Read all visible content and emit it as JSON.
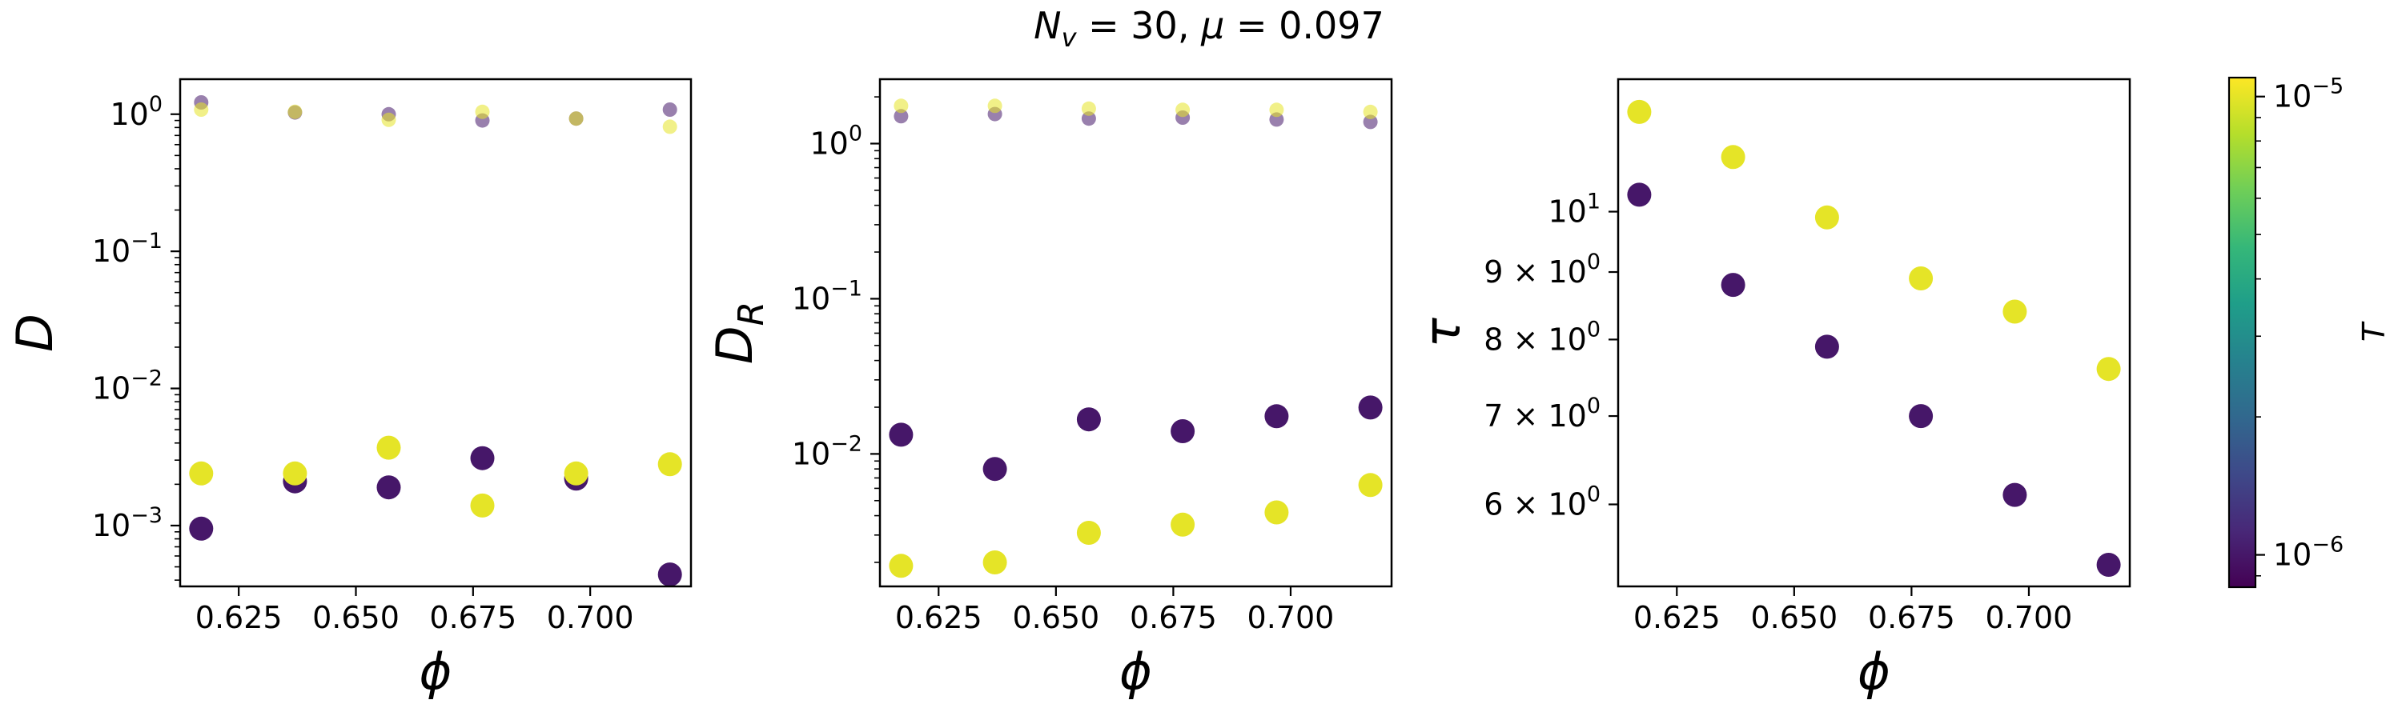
{
  "suptitle": "N_v = 30, μ = 0.097",
  "colorbar": {
    "label": "T",
    "scale": "log",
    "range": [
      8.5e-07,
      1.1e-05
    ],
    "ticks": [
      {
        "value": 1e-06,
        "exp": "−6"
      },
      {
        "value": 1e-05,
        "exp": "−5"
      }
    ],
    "colormap": "viridis",
    "colors": [
      "#440154",
      "#482878",
      "#3e4989",
      "#31688e",
      "#26828e",
      "#1f9e89",
      "#35b779",
      "#6ece58",
      "#b5de2b",
      "#fde725"
    ]
  },
  "chart_data": [
    {
      "type": "scatter",
      "xlabel": "ϕ",
      "ylabel": "D",
      "yscale": "log",
      "xlim": [
        0.6125,
        0.7215
      ],
      "ylim": [
        0.00036,
        1.8
      ],
      "xticks": [
        "0.625",
        "0.650",
        "0.675",
        "0.700"
      ],
      "yticks": [
        {
          "value": 1,
          "exp": "0"
        },
        {
          "value": 0.1,
          "exp": "−1"
        },
        {
          "value": 0.01,
          "exp": "−2"
        },
        {
          "value": 0.001,
          "exp": "−3"
        }
      ],
      "series": [
        {
          "T": 1e-06,
          "marker": "large",
          "x": [
            0.617,
            0.637,
            0.657,
            0.677,
            0.697,
            0.717
          ],
          "y": [
            0.00095,
            0.0021,
            0.0019,
            0.0031,
            0.0022,
            0.00044
          ]
        },
        {
          "T": 1e-05,
          "marker": "large",
          "x": [
            0.617,
            0.637,
            0.657,
            0.677,
            0.697,
            0.717
          ],
          "y": [
            0.0024,
            0.0024,
            0.0037,
            0.0014,
            0.0024,
            0.0028
          ]
        },
        {
          "T": 1e-06,
          "marker": "small",
          "x": [
            0.617,
            0.637,
            0.657,
            0.677,
            0.697,
            0.717
          ],
          "y": [
            1.22,
            1.03,
            1.0,
            0.9,
            0.93,
            1.08
          ]
        },
        {
          "T": 1e-05,
          "marker": "small",
          "x": [
            0.617,
            0.637,
            0.657,
            0.677,
            0.697,
            0.717
          ],
          "y": [
            1.08,
            1.04,
            0.91,
            1.04,
            0.93,
            0.81
          ]
        }
      ]
    },
    {
      "type": "scatter",
      "xlabel": "ϕ",
      "ylabel": "D_R",
      "yscale": "log",
      "xlim": [
        0.6125,
        0.7215
      ],
      "ylim": [
        0.0014,
        2.6
      ],
      "xticks": [
        "0.625",
        "0.650",
        "0.675",
        "0.700"
      ],
      "yticks": [
        {
          "value": 1,
          "exp": "0"
        },
        {
          "value": 0.1,
          "exp": "−1"
        },
        {
          "value": 0.01,
          "exp": "−2"
        }
      ],
      "series": [
        {
          "T": 1e-06,
          "marker": "large",
          "x": [
            0.617,
            0.637,
            0.657,
            0.677,
            0.697,
            0.717
          ],
          "y": [
            0.0133,
            0.008,
            0.0167,
            0.014,
            0.0175,
            0.0199
          ]
        },
        {
          "T": 1e-05,
          "marker": "large",
          "x": [
            0.617,
            0.637,
            0.657,
            0.677,
            0.697,
            0.717
          ],
          "y": [
            0.0019,
            0.002,
            0.0031,
            0.0035,
            0.0042,
            0.0063
          ]
        },
        {
          "T": 1e-06,
          "marker": "small",
          "x": [
            0.617,
            0.637,
            0.657,
            0.677,
            0.697,
            0.717
          ],
          "y": [
            1.5,
            1.55,
            1.45,
            1.47,
            1.43,
            1.38
          ]
        },
        {
          "T": 1e-05,
          "marker": "small",
          "x": [
            0.617,
            0.637,
            0.657,
            0.677,
            0.697,
            0.717
          ],
          "y": [
            1.75,
            1.75,
            1.68,
            1.65,
            1.65,
            1.6
          ]
        }
      ]
    },
    {
      "type": "scatter",
      "xlabel": "ϕ",
      "ylabel": "τ",
      "yscale": "log",
      "xlim": [
        0.6125,
        0.7215
      ],
      "ylim": [
        5.2,
        12.6
      ],
      "xticks": [
        "0.625",
        "0.650",
        "0.675",
        "0.700"
      ],
      "yticks": [
        {
          "value": 10,
          "label": "10",
          "exp": "1"
        },
        {
          "value": 9,
          "label": "9 × 10",
          "exp": "0"
        },
        {
          "value": 8,
          "label": "8 × 10",
          "exp": "0"
        },
        {
          "value": 7,
          "label": "7 × 10",
          "exp": "0"
        },
        {
          "value": 6,
          "label": "6 × 10",
          "exp": "0"
        }
      ],
      "series": [
        {
          "T": 1e-06,
          "marker": "large",
          "x": [
            0.617,
            0.637,
            0.657,
            0.677,
            0.697,
            0.717
          ],
          "y": [
            10.3,
            8.8,
            7.9,
            7.0,
            6.1,
            5.4
          ]
        },
        {
          "T": 1e-05,
          "marker": "large",
          "x": [
            0.617,
            0.637,
            0.657,
            0.677,
            0.697,
            0.717
          ],
          "y": [
            11.9,
            11.0,
            9.9,
            8.9,
            8.4,
            7.6
          ]
        }
      ]
    }
  ]
}
